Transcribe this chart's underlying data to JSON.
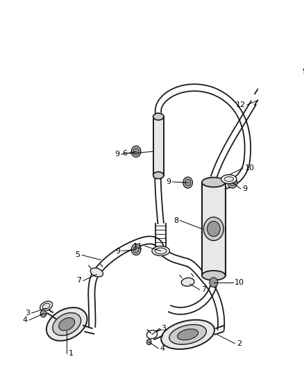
{
  "fig_width": 4.38,
  "fig_height": 5.33,
  "dpi": 100,
  "bg": "#ffffff",
  "lc": "#1a1a1a",
  "fl": "#e8e8e8",
  "fm": "#cccccc",
  "fd": "#999999"
}
